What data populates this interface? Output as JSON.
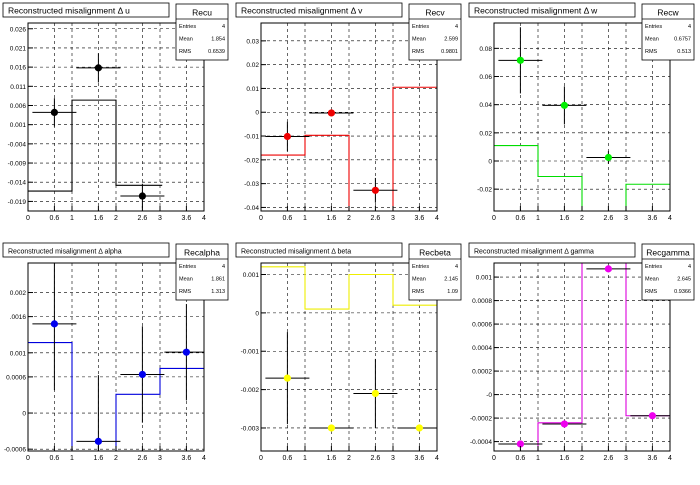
{
  "chart_data": [
    {
      "type": "scatter",
      "title": "Reconstructed misalignment Δ u",
      "xlim": [
        0,
        4
      ],
      "ylim": [
        -0.0215,
        0.0275
      ],
      "xticks": [
        "0",
        "0.6",
        "1",
        "1.6",
        "2",
        "2.6",
        "3",
        "3.6",
        "4"
      ],
      "yticks": [
        {
          "v": 0.026,
          "label": "0.026"
        },
        {
          "v": 0.021,
          "label": "0.021"
        },
        {
          "v": 0.016,
          "label": "0.016"
        },
        {
          "v": 0.011,
          "label": "0.011"
        },
        {
          "v": 0.006,
          "label": "0.006"
        },
        {
          "v": 0.001,
          "label": "0.001"
        },
        {
          "v": -0.004,
          "label": "-0.004"
        },
        {
          "v": -0.009,
          "label": "-0.009"
        },
        {
          "v": -0.014,
          "label": "-0.014"
        },
        {
          "v": -0.019,
          "label": "-0.019"
        }
      ],
      "grid": true,
      "legend_placement": "top-right",
      "stats": {
        "name": "Recu",
        "entries": "4",
        "mean": "1.854",
        "rms": "0.6539"
      },
      "hist_color": "#000000",
      "point_color": "#000000",
      "hist_bins": [
        [
          0,
          1,
          -0.0163
        ],
        [
          1,
          2,
          0.0074
        ],
        [
          2,
          3,
          -0.0148
        ]
      ],
      "hist_step_tail": 3.05,
      "points": [
        {
          "x": 0.6,
          "y": 0.0042,
          "err": 0.0037
        },
        {
          "x": 1.6,
          "y": 0.0158,
          "err": 0.0038
        },
        {
          "x": 2.6,
          "y": -0.0176,
          "err": 0.0032
        }
      ]
    },
    {
      "type": "scatter",
      "title": "Reconstructed misalignment Δ v",
      "xlim": [
        0,
        4
      ],
      "ylim": [
        -0.0415,
        0.0375
      ],
      "xticks": [
        "0",
        "0.6",
        "1",
        "1.6",
        "2",
        "2.6",
        "3",
        "3.6",
        "4"
      ],
      "yticks": [
        {
          "v": 0.03,
          "label": "0.03"
        },
        {
          "v": 0.02,
          "label": "0.02"
        },
        {
          "v": 0.01,
          "label": "0.01"
        },
        {
          "v": 0,
          "label": "0"
        },
        {
          "v": -0.01,
          "label": "-0.01"
        },
        {
          "v": -0.02,
          "label": "-0.02"
        },
        {
          "v": -0.03,
          "label": "-0.03"
        },
        {
          "v": -0.04,
          "label": "-0.04"
        }
      ],
      "grid": true,
      "legend_placement": "top-right",
      "stats": {
        "name": "Recv",
        "entries": "4",
        "mean": "2.599",
        "rms": "0.9801"
      },
      "hist_color": "#ee0000",
      "point_color": "#ee0000",
      "hist_bins": [
        [
          0,
          1,
          -0.018
        ],
        [
          1,
          2,
          -0.0097
        ],
        [
          2,
          3,
          -0.0415
        ],
        [
          3,
          4,
          0.0105
        ]
      ],
      "hist_step_tail": 4,
      "points": [
        {
          "x": 0.6,
          "y": -0.0102,
          "err": 0.0062
        },
        {
          "x": 1.6,
          "y": -0.0003,
          "err": 0.0
        },
        {
          "x": 2.6,
          "y": -0.0328,
          "err": 0.0052
        }
      ]
    },
    {
      "type": "scatter",
      "title": "Reconstructed misalignment Δ w",
      "xlim": [
        0,
        4
      ],
      "ylim": [
        -0.0355,
        0.098
      ],
      "xticks": [
        "0",
        "0.6",
        "1",
        "1.6",
        "2",
        "2.6",
        "3",
        "3.6",
        "4"
      ],
      "yticks": [
        {
          "v": 0.08,
          "label": "0.08"
        },
        {
          "v": 0.06,
          "label": "0.06"
        },
        {
          "v": 0.04,
          "label": "0.04"
        },
        {
          "v": 0.02,
          "label": "0.02"
        },
        {
          "v": 0,
          "label": "0"
        },
        {
          "v": -0.02,
          "label": "-0.02"
        }
      ],
      "grid": true,
      "legend_placement": "top-right",
      "stats": {
        "name": "Recw",
        "entries": "4",
        "mean": "0.6757",
        "rms": "0.513"
      },
      "hist_color": "#00dd00",
      "point_color": "#00ee00",
      "hist_bins": [
        [
          0,
          1,
          0.011
        ],
        [
          1,
          2,
          -0.011
        ],
        [
          2,
          3,
          -0.0355
        ],
        [
          3,
          4,
          -0.0165
        ]
      ],
      "hist_step_tail": 4,
      "points": [
        {
          "x": 0.6,
          "y": 0.0715,
          "err": 0.0235
        },
        {
          "x": 1.6,
          "y": 0.0395,
          "err": 0.0135
        },
        {
          "x": 2.6,
          "y": 0.0025,
          "err": 0.0045
        }
      ]
    },
    {
      "type": "scatter",
      "title": "Reconstructed misalignment      Δ alpha",
      "xlim": [
        0,
        4
      ],
      "ylim": [
        -0.00063,
        0.00249
      ],
      "xticks": [
        "0",
        "0.6",
        "1",
        "1.6",
        "2",
        "2.6",
        "3",
        "3.6",
        "4"
      ],
      "yticks": [
        {
          "v": 0.002,
          "label": "0.002"
        },
        {
          "v": 0.0016,
          "label": ".0016"
        },
        {
          "v": 0.001,
          "label": "0.001"
        },
        {
          "v": 0.0006,
          "label": "0.0006"
        },
        {
          "v": 0,
          "label": "0"
        },
        {
          "v": -0.0006,
          "label": "-0.0006"
        }
      ],
      "grid": true,
      "legend_placement": "top-right",
      "stats": {
        "name": "Recalpha",
        "entries": "4",
        "mean": "1.861",
        "rms": "1.313"
      },
      "hist_color": "#0000dd",
      "point_color": "#0000ee",
      "hist_bins": [
        [
          0,
          1,
          0.00117
        ],
        [
          1,
          2,
          -0.00063
        ],
        [
          2,
          3,
          0.00031
        ],
        [
          3,
          4,
          0.00074
        ]
      ],
      "hist_step_tail": 4,
      "points": [
        {
          "x": 0.6,
          "y": 0.00148,
          "err": 0.0011
        },
        {
          "x": 1.6,
          "y": -0.00047,
          "err": 0.0011
        },
        {
          "x": 2.6,
          "y": 0.00064,
          "err": 0.0008
        },
        {
          "x": 3.6,
          "y": 0.00101,
          "err": 0.0008
        }
      ]
    },
    {
      "type": "scatter",
      "title": "Reconstructed misalignment      Δ beta",
      "xlim": [
        0,
        4
      ],
      "ylim": [
        -0.0036,
        0.0013
      ],
      "xticks": [
        "0",
        "0.6",
        "1",
        "1.6",
        "2",
        "2.6",
        "3",
        "3.6",
        "4"
      ],
      "yticks": [
        {
          "v": 0.001,
          "label": "0.001"
        },
        {
          "v": 0,
          "label": "0"
        },
        {
          "v": -0.001,
          "label": "-0.001"
        },
        {
          "v": -0.002,
          "label": "-0.002"
        },
        {
          "v": -0.003,
          "label": "-0.003"
        }
      ],
      "grid": true,
      "legend_placement": "top-right",
      "stats": {
        "name": "Recbeta",
        "entries": "4",
        "mean": "2.145",
        "rms": "1.09"
      },
      "hist_color": "#eeee00",
      "point_color": "#ffff00",
      "hist_bins": [
        [
          0,
          1,
          0.0012
        ],
        [
          1,
          2,
          0.0001
        ],
        [
          2,
          3,
          0.001
        ],
        [
          3,
          4,
          0.0002
        ]
      ],
      "hist_step_tail": 4,
      "points": [
        {
          "x": 0.6,
          "y": -0.0017,
          "err": 0.0012
        },
        {
          "x": 1.6,
          "y": -0.003,
          "err": 0.0
        },
        {
          "x": 2.6,
          "y": -0.0021,
          "err": 0.0009
        },
        {
          "x": 3.6,
          "y": -0.003,
          "err": 0.0
        }
      ]
    },
    {
      "type": "scatter",
      "title": "Reconstructed misalignment      Δ gamma",
      "xlim": [
        0,
        4
      ],
      "ylim": [
        -0.00048,
        0.00112
      ],
      "xticks": [
        "0",
        "0.6",
        "1",
        "1.6",
        "2",
        "2.6",
        "3",
        "3.6",
        "4"
      ],
      "yticks": [
        {
          "v": 0.001,
          "label": "0.001"
        },
        {
          "v": 0.0008,
          "label": "0.0008"
        },
        {
          "v": 0.0006,
          "label": "0.0006"
        },
        {
          "v": 0.0004,
          "label": "0.0004"
        },
        {
          "v": 0.0002,
          "label": "0.0002"
        },
        {
          "v": 0,
          "label": "-0"
        },
        {
          "v": -0.0002,
          "label": "-0.0002"
        },
        {
          "v": -0.0004,
          "label": "-0.0004"
        }
      ],
      "grid": true,
      "legend_placement": "top-right",
      "stats": {
        "name": "Recgamma",
        "entries": "4",
        "mean": "2.645",
        "rms": "0.9366"
      },
      "hist_color": "#dd00dd",
      "point_color": "#ee00ee",
      "hist_bins": [
        [
          0,
          1,
          -0.00048
        ],
        [
          1,
          2,
          -0.00024
        ],
        [
          2,
          3,
          0.00112
        ],
        [
          3,
          4,
          -0.00018
        ]
      ],
      "hist_step_tail": 4,
      "points": [
        {
          "x": 0.6,
          "y": -0.00042,
          "err": 0.0
        },
        {
          "x": 1.6,
          "y": -0.00025,
          "err": 0.0
        },
        {
          "x": 2.6,
          "y": 0.00107,
          "err": 0.0
        },
        {
          "x": 3.6,
          "y": -0.00018,
          "err": 0.0
        }
      ]
    }
  ]
}
